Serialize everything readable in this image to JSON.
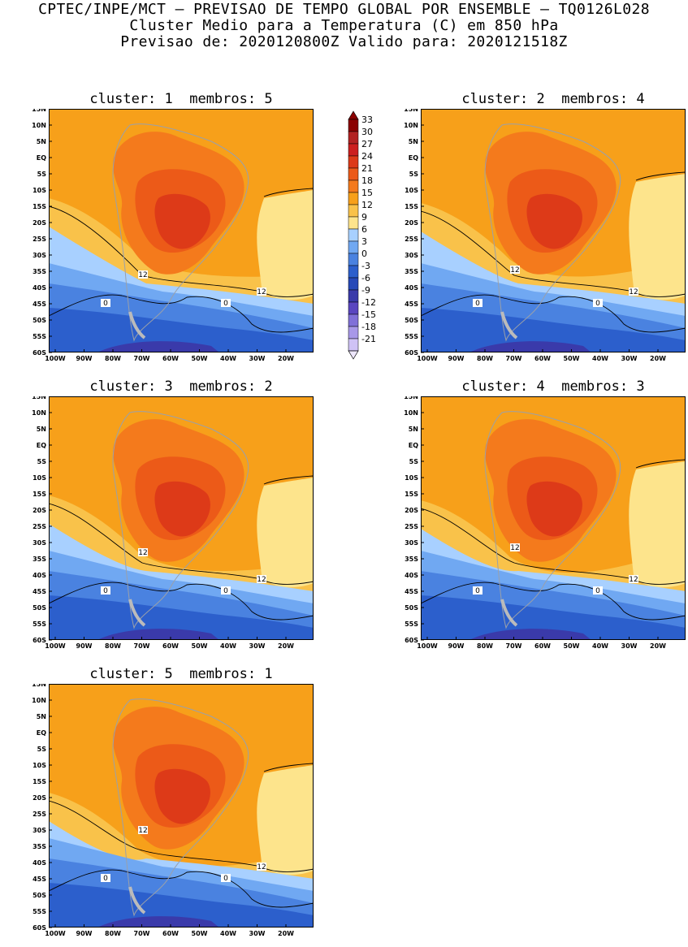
{
  "header": {
    "line1": "CPTEC/INPE/MCT – PREVISAO DE TEMPO GLOBAL POR ENSEMBLE – TQ0126L028",
    "line2": "Cluster Medio para a Temperatura (C) em 850 hPa",
    "line3": "Previsao de: 2020120800Z   Valido para: 2020121518Z"
  },
  "panels": [
    {
      "title": "cluster: 1  membros: 5"
    },
    {
      "title": "cluster: 2  membros: 4"
    },
    {
      "title": "cluster: 3  membros: 2"
    },
    {
      "title": "cluster: 4  membros: 3"
    },
    {
      "title": "cluster: 5  membros: 1"
    }
  ],
  "lat_labels": [
    "15N",
    "10N",
    "5N",
    "EQ",
    "5S",
    "10S",
    "15S",
    "20S",
    "25S",
    "30S",
    "35S",
    "40S",
    "45S",
    "50S",
    "55S",
    "60S"
  ],
  "lon_labels": [
    "100W",
    "90W",
    "80W",
    "70W",
    "60W",
    "50W",
    "40W",
    "30W",
    "20W"
  ],
  "contour_labels": {
    "twelve": "12",
    "zero": "0"
  },
  "colorbar": {
    "levels": [
      "33",
      "30",
      "27",
      "24",
      "21",
      "18",
      "15",
      "12",
      "9",
      "6",
      "3",
      "0",
      "-3",
      "-6",
      "-9",
      "-12",
      "-15",
      "-18",
      "-21"
    ],
    "colors": [
      "#8b0000",
      "#b22222",
      "#cc1f1f",
      "#dd3a18",
      "#ec5a18",
      "#f47a1c",
      "#f7a01a",
      "#f9c24a",
      "#fde48c",
      "#a8d0ff",
      "#70a8f2",
      "#4a82e0",
      "#2c5fcc",
      "#2649b8",
      "#3a3aaa",
      "#5a46c0",
      "#8070d8",
      "#a898e8",
      "#cfc2f5"
    ]
  }
}
